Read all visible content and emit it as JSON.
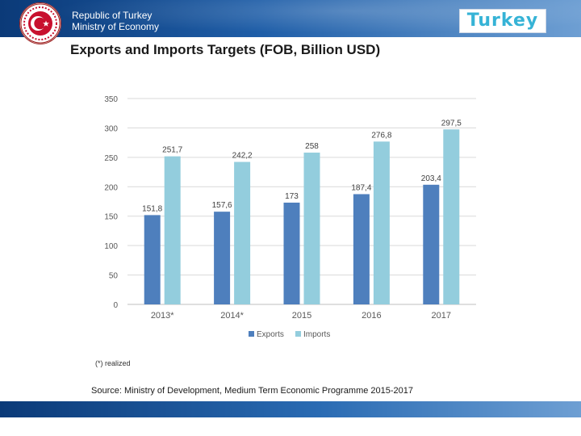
{
  "header": {
    "ministry_line1": "Republic of Turkey",
    "ministry_line2": "Ministry of Economy",
    "brand": "Turkey"
  },
  "slide_title": "Exports and Imports Targets (FOB, Billion USD)",
  "footnote": "(*) realized",
  "source": "Source: Ministry of Development, Medium Term Economic Programme 2015-2017",
  "colors": {
    "exports": "#4e7fbd",
    "imports": "#93cddd",
    "header_dark": "#0b3a78",
    "emblem_red": "#c8102e"
  },
  "chart_data": {
    "type": "bar",
    "title": "Exports and Imports Targets (FOB, Billion USD)",
    "xlabel": "",
    "ylabel": "",
    "ylim": [
      0,
      350
    ],
    "yticks": [
      0,
      50,
      100,
      150,
      200,
      250,
      300,
      350
    ],
    "categories": [
      "2013*",
      "2014*",
      "2015",
      "2016",
      "2017"
    ],
    "series": [
      {
        "name": "Exports",
        "values": [
          151.8,
          157.6,
          173,
          187.4,
          203.4
        ],
        "labels": [
          "151,8",
          "157,6",
          "173",
          "187,4",
          "203,4"
        ]
      },
      {
        "name": "Imports",
        "values": [
          251.7,
          242.2,
          258,
          276.8,
          297.5
        ],
        "labels": [
          "251,7",
          "242,2",
          "258",
          "276,8",
          "297,5"
        ]
      }
    ],
    "grid": true,
    "legend_position": "bottom"
  }
}
